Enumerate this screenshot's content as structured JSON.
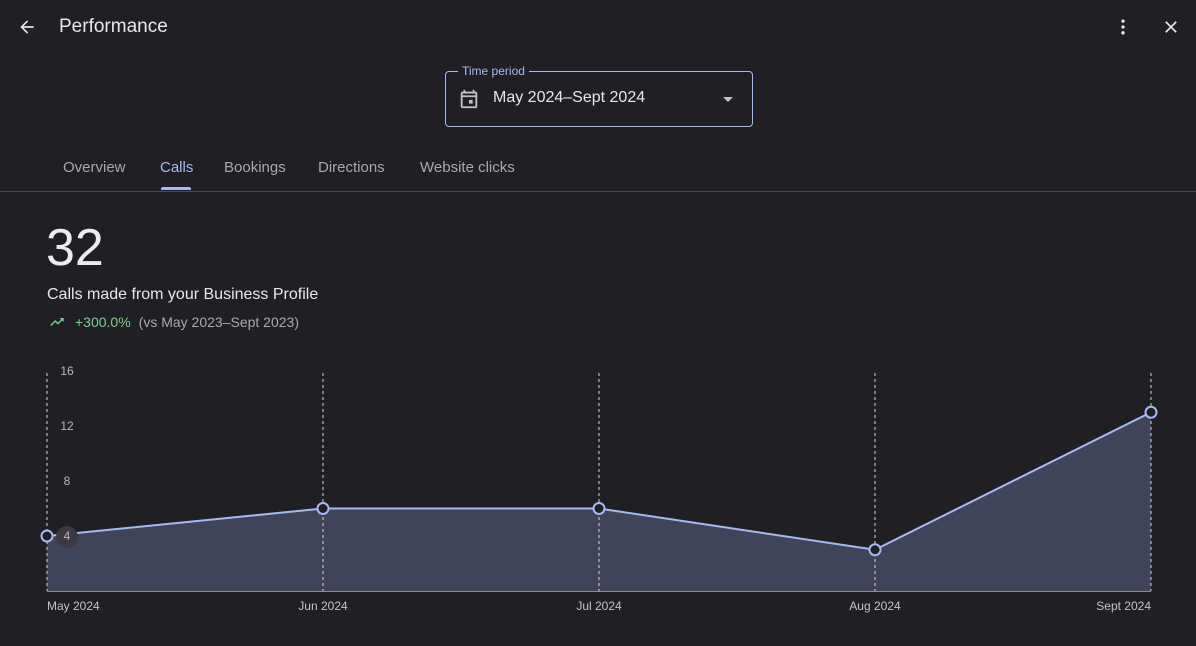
{
  "header": {
    "title": "Performance",
    "back_icon": "arrow-back-icon",
    "more_icon": "more-vert-icon",
    "close_icon": "close-icon"
  },
  "time_period": {
    "label": "Time period",
    "value": "May 2024–Sept 2024",
    "icon": "calendar-icon"
  },
  "tabs": [
    {
      "label": "Overview",
      "active": false
    },
    {
      "label": "Calls",
      "active": true
    },
    {
      "label": "Bookings",
      "active": false
    },
    {
      "label": "Directions",
      "active": false
    },
    {
      "label": "Website clicks",
      "active": false
    }
  ],
  "metric": {
    "value": "32",
    "caption": "Calls made from your Business Profile",
    "change": "+300.0%",
    "comparison": "(vs May 2023–Sept 2023)"
  },
  "colors": {
    "accent": "#a8b9f2",
    "positive": "#7fcf8e",
    "area_fill": "#414358"
  },
  "chart_data": {
    "type": "area",
    "categories": [
      "May 2024",
      "Jun 2024",
      "Jul 2024",
      "Aug 2024",
      "Sept 2024"
    ],
    "values": [
      4,
      6,
      6,
      3,
      13
    ],
    "y_ticks": [
      4,
      8,
      12,
      16
    ],
    "ylim": [
      0,
      16
    ],
    "highlighted_tick": 4,
    "title": "",
    "xlabel": "",
    "ylabel": ""
  }
}
